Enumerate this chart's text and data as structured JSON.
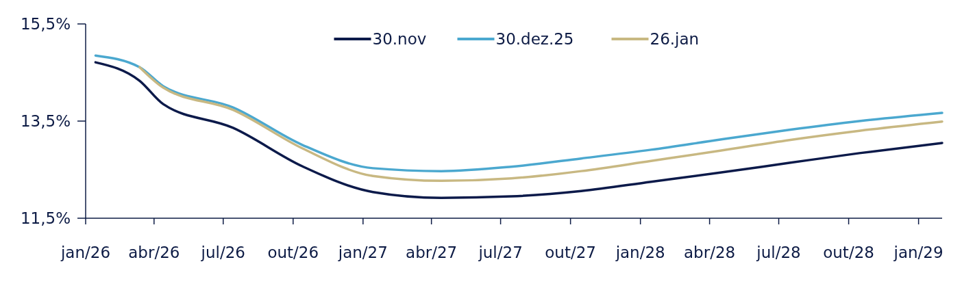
{
  "chart_data": {
    "type": "line",
    "xlim": [
      "2026-01-01",
      "2029-02-01"
    ],
    "xticks": [
      {
        "value": "2026-01-01",
        "label": "jan/26"
      },
      {
        "value": "2026-04-01",
        "label": "abr/26"
      },
      {
        "value": "2026-07-01",
        "label": "jul/26"
      },
      {
        "value": "2026-10-01",
        "label": "out/26"
      },
      {
        "value": "2027-01-01",
        "label": "jan/27"
      },
      {
        "value": "2027-04-01",
        "label": "abr/27"
      },
      {
        "value": "2027-07-01",
        "label": "jul/27"
      },
      {
        "value": "2027-10-01",
        "label": "out/27"
      },
      {
        "value": "2028-01-01",
        "label": "jan/28"
      },
      {
        "value": "2028-04-01",
        "label": "abr/28"
      },
      {
        "value": "2028-07-01",
        "label": "jul/28"
      },
      {
        "value": "2028-10-01",
        "label": "out/28"
      },
      {
        "value": "2029-01-01",
        "label": "jan/29"
      }
    ],
    "ylim": [
      11.5,
      15.5
    ],
    "yticks": [
      {
        "value": 11.5,
        "label": "11,5%"
      },
      {
        "value": 13.5,
        "label": "13,5%"
      },
      {
        "value": 15.5,
        "label": "15,5%"
      }
    ],
    "grid": false,
    "legend": "top",
    "line_style": "solid",
    "marker": "none",
    "series": [
      {
        "name": "30.nov",
        "color": "#0c1a4a",
        "x": [
          "2026-01-14",
          "2026-03-13",
          "2026-04-13",
          "2026-07-14",
          "2026-10-13",
          "2027-01-14",
          "2027-04-14",
          "2027-07-15",
          "2027-10-15",
          "2028-01-15",
          "2028-04-15",
          "2028-07-15",
          "2028-10-15",
          "2029-02-01"
        ],
        "values": [
          14.71,
          14.33,
          13.85,
          13.36,
          12.57,
          12.04,
          11.92,
          11.95,
          12.06,
          12.25,
          12.44,
          12.64,
          12.84,
          13.05
        ]
      },
      {
        "name": "30.dez.25",
        "color": "#4ba8cf",
        "x": [
          "2026-01-14",
          "2026-03-13",
          "2026-04-13",
          "2026-07-14",
          "2026-10-13",
          "2027-01-14",
          "2027-04-14",
          "2027-07-15",
          "2027-10-15",
          "2028-01-15",
          "2028-04-15",
          "2028-07-15",
          "2028-10-15",
          "2029-02-01"
        ],
        "values": [
          14.85,
          14.61,
          14.22,
          13.78,
          13.01,
          12.53,
          12.47,
          12.56,
          12.73,
          12.91,
          13.12,
          13.32,
          13.5,
          13.67
        ]
      },
      {
        "name": "26.jan",
        "color": "#c8b882",
        "x": [
          "2026-03-13",
          "2026-04-13",
          "2026-07-14",
          "2026-10-13",
          "2027-01-14",
          "2027-04-14",
          "2027-07-15",
          "2027-10-15",
          "2028-01-15",
          "2028-04-15",
          "2028-07-15",
          "2028-10-15",
          "2029-02-01"
        ],
        "values": [
          14.61,
          14.19,
          13.73,
          12.94,
          12.37,
          12.27,
          12.32,
          12.47,
          12.68,
          12.89,
          13.11,
          13.3,
          13.49
        ]
      }
    ]
  }
}
